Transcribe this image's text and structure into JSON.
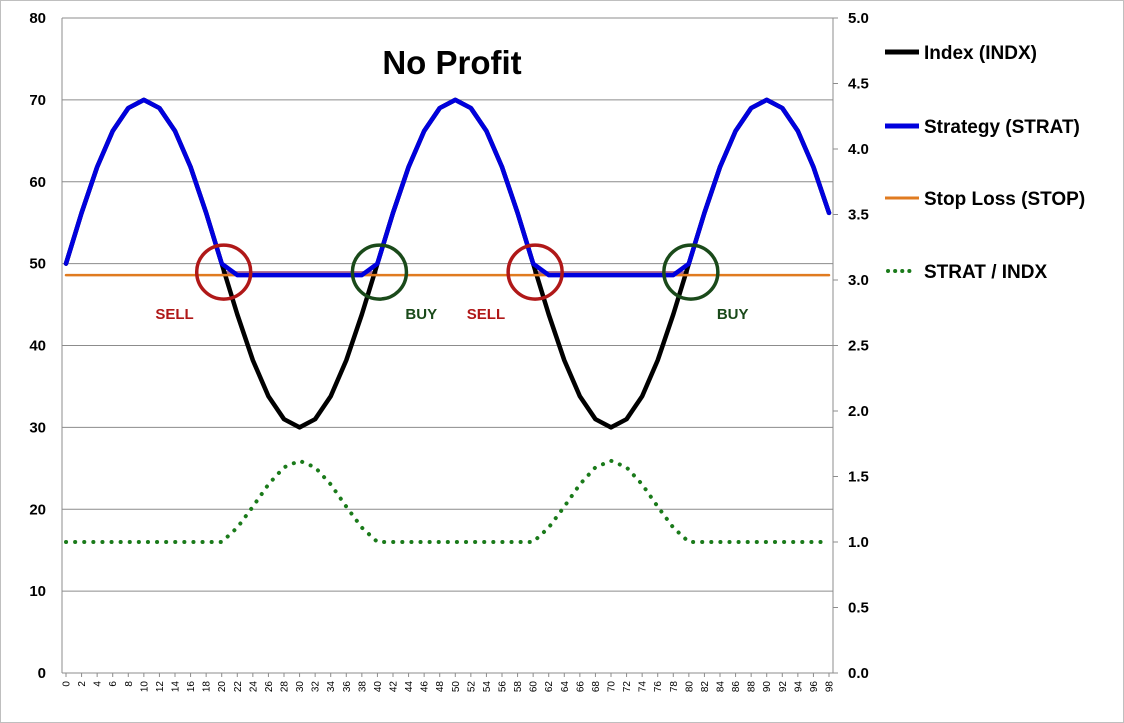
{
  "chart_data": {
    "type": "line",
    "title": "No Profit",
    "xlabel": "",
    "ylabel": "",
    "x": [
      0,
      2,
      4,
      6,
      8,
      10,
      12,
      14,
      16,
      18,
      20,
      22,
      24,
      26,
      28,
      30,
      32,
      34,
      36,
      38,
      40,
      42,
      44,
      46,
      48,
      50,
      52,
      54,
      56,
      58,
      60,
      62,
      64,
      66,
      68,
      70,
      72,
      74,
      76,
      78,
      80,
      82,
      84,
      86,
      88,
      90,
      92,
      94,
      96,
      98
    ],
    "x_tick_labels": [
      "0",
      "2",
      "4",
      "6",
      "8",
      "10",
      "12",
      "14",
      "16",
      "18",
      "20",
      "22",
      "24",
      "26",
      "28",
      "30",
      "32",
      "34",
      "36",
      "38",
      "40",
      "42",
      "44",
      "46",
      "48",
      "50",
      "52",
      "54",
      "56",
      "58",
      "60",
      "62",
      "64",
      "66",
      "68",
      "70",
      "72",
      "74",
      "76",
      "78",
      "80",
      "82",
      "84",
      "86",
      "88",
      "90",
      "92",
      "94",
      "96",
      "98"
    ],
    "xlim": [
      0,
      98
    ],
    "ylim": [
      0,
      80
    ],
    "y_ticks": [
      0,
      10,
      20,
      30,
      40,
      50,
      60,
      70,
      80
    ],
    "y_tick_labels": [
      "0",
      "10",
      "20",
      "30",
      "40",
      "50",
      "60",
      "70",
      "80"
    ],
    "y2lim": [
      0,
      5
    ],
    "y2_ticks": [
      0,
      0.5,
      1,
      1.5,
      2,
      2.5,
      3,
      3.5,
      4,
      4.5,
      5
    ],
    "y2_tick_labels": [
      "0.0",
      "0.5",
      "1.0",
      "1.5",
      "2.0",
      "2.5",
      "3.0",
      "3.5",
      "4.0",
      "4.5",
      "5.0"
    ],
    "grid": true,
    "legend_position": "right",
    "series": [
      {
        "name": "Index (INDX)",
        "axis": "left",
        "color": "#000000",
        "style": "solid",
        "values": [
          50,
          56.2,
          61.8,
          66.2,
          69,
          70,
          69,
          66.2,
          61.8,
          56.2,
          50,
          43.8,
          38.2,
          33.8,
          31,
          30,
          31,
          33.8,
          38.2,
          43.8,
          50,
          56.2,
          61.8,
          66.2,
          69,
          70,
          69,
          66.2,
          61.8,
          56.2,
          50,
          43.8,
          38.2,
          33.8,
          31,
          30,
          31,
          33.8,
          38.2,
          43.8,
          50,
          56.2,
          61.8,
          66.2,
          69,
          70,
          69,
          66.2,
          61.8,
          56.2
        ]
      },
      {
        "name": "Strategy (STRAT)",
        "axis": "left",
        "color": "#0000dd",
        "style": "solid",
        "values": [
          50,
          56.2,
          61.8,
          66.2,
          69,
          70,
          69,
          66.2,
          61.8,
          56.2,
          50,
          48.6,
          48.6,
          48.6,
          48.6,
          48.6,
          48.6,
          48.6,
          48.6,
          48.6,
          50,
          56.2,
          61.8,
          66.2,
          69,
          70,
          69,
          66.2,
          61.8,
          56.2,
          50,
          48.6,
          48.6,
          48.6,
          48.6,
          48.6,
          48.6,
          48.6,
          48.6,
          48.6,
          50,
          56.2,
          61.8,
          66.2,
          69,
          70,
          69,
          66.2,
          61.8,
          56.2
        ]
      },
      {
        "name": "Stop Loss (STOP)",
        "axis": "left",
        "color": "#e07b20",
        "style": "solid",
        "values": [
          48.6,
          48.6,
          48.6,
          48.6,
          48.6,
          48.6,
          48.6,
          48.6,
          48.6,
          48.6,
          48.6,
          48.6,
          48.6,
          48.6,
          48.6,
          48.6,
          48.6,
          48.6,
          48.6,
          48.6,
          48.6,
          48.6,
          48.6,
          48.6,
          48.6,
          48.6,
          48.6,
          48.6,
          48.6,
          48.6,
          48.6,
          48.6,
          48.6,
          48.6,
          48.6,
          48.6,
          48.6,
          48.6,
          48.6,
          48.6,
          48.6,
          48.6,
          48.6,
          48.6,
          48.6,
          48.6,
          48.6,
          48.6,
          48.6,
          48.6
        ]
      },
      {
        "name": "STRAT / INDX",
        "axis": "right",
        "color": "#1a7a1a",
        "style": "dotted",
        "values": [
          1,
          1,
          1,
          1,
          1,
          1,
          1,
          1,
          1,
          1,
          1,
          1.11,
          1.27,
          1.44,
          1.57,
          1.62,
          1.57,
          1.44,
          1.27,
          1.11,
          1,
          1,
          1,
          1,
          1,
          1,
          1,
          1,
          1,
          1,
          1,
          1.11,
          1.27,
          1.44,
          1.57,
          1.62,
          1.57,
          1.44,
          1.27,
          1.11,
          1,
          1,
          1,
          1,
          1,
          1,
          1,
          1,
          1,
          1
        ]
      }
    ],
    "annotations": [
      {
        "text": "SELL",
        "x": 20,
        "y": 48.6,
        "color": "#b01818",
        "label_side": "left"
      },
      {
        "text": "BUY",
        "x": 40,
        "y": 48.6,
        "color": "#1a4a1a",
        "label_side": "right"
      },
      {
        "text": "SELL",
        "x": 60,
        "y": 48.6,
        "color": "#b01818",
        "label_side": "left"
      },
      {
        "text": "BUY",
        "x": 80,
        "y": 48.6,
        "color": "#1a4a1a",
        "label_side": "right"
      }
    ],
    "stop_band_color": "#a0527a"
  }
}
